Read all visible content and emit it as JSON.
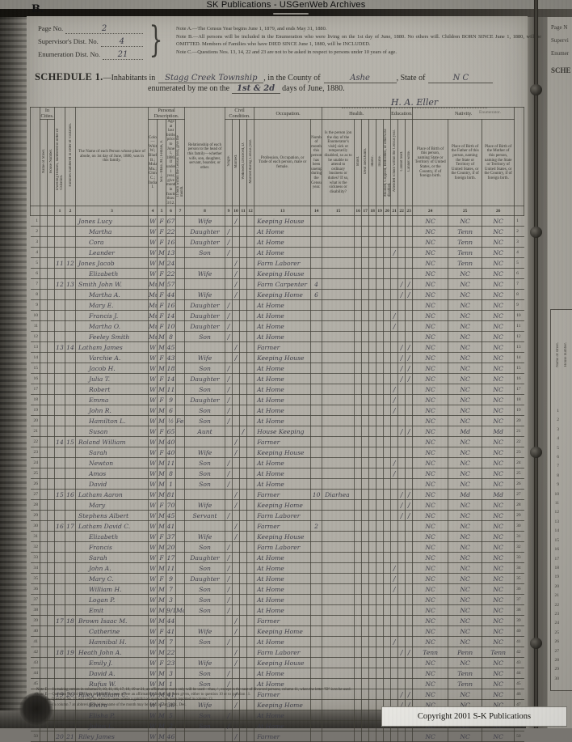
{
  "banner": {
    "text": "SK Publications - USGenWeb Archives"
  },
  "page_mark": "B.",
  "header": {
    "page_no_label": "Page No.",
    "page_no": "2",
    "sup_label": "Supervisor's Dist. No.",
    "sup": "4",
    "enum_label": "Enumeration Dist. No.",
    "enum_no": "21",
    "note_a": "Note A.—The Census Year begins June 1, 1879, and ends May 31, 1880.",
    "note_b": "Note B.—All persons will be included in the Enumeration who were living on the 1st day of June, 1880. No others will.  Children BORN SINCE June 1, 1880, will be OMITTED.  Members of Families who have DIED SINCE June 1, 1880, will be INCLUDED.",
    "note_c": "Note C.—Questions Nos. 13, 14, 22 and 23 are not to be asked in respect to persons under 10 years of age."
  },
  "schedule": {
    "title": "SCHEDULE 1.",
    "line1_pre": "—Inhabitants in",
    "township": "Stagg Creek Township",
    "county_label": ", in the County of",
    "county": "Ashe",
    "state_label": ", State of",
    "state": "N C",
    "line2_pre": "enumerated by me on the",
    "days": "1st & 2d",
    "line2_post": "days of June, 1880.",
    "signature": "H. A. Eller",
    "enumerator_label": "Enumerator."
  },
  "table": {
    "groups": {
      "in_cities": "In Cities.",
      "personal": "Personal Description.",
      "civil": "Civil Condition.",
      "occupation": "Occupation.",
      "health": "Health.",
      "education": "Education.",
      "nativity": "Nativity."
    },
    "labels": {
      "street": "Name of Street.",
      "house": "House Number.",
      "c1": "Dwelling Houses, numbered in order of visitation.",
      "c2": "Families numbered in order of visitation.",
      "c3": "The Name of each Person whose place of abode, on 1st day of June, 1880, was in this family.",
      "c4": "Color—White, W.; Black, B.; Mulatto, Mu.; Chinese, C.; Indian, I.",
      "c5": "Sex—Male, M.; Female, F.",
      "c6": "Age at last birthday prior to June 1, 1880. If under 1 year, give months in fractions, thus: 3/12.",
      "c7": "If born within the Census year, give the month.",
      "c8": "Relationship of each person to the head of this family—whether wife, son, daughter, servant, boarder, or other.",
      "c9": "Single.",
      "c10": "Married.",
      "c11": "Widowed, Divorced, D.",
      "c12": "Married during Census year.",
      "c13": "Profession, Occupation, or Trade of each person, male or female.",
      "c14": "Number of months this person has been unemployed during the Census year.",
      "c15": "Is the person [on the day of the Enumerator's visit] sick or temporarily disabled, so as to be unable to attend to ordinary business or duties? If so, what is the sickness or disability?",
      "c16": "Blind.",
      "c17": "Deaf and Dumb.",
      "c18": "Idiotic.",
      "c19": "Insane.",
      "c20": "Maimed, Crippled, Bedridden, or otherwise disabled.",
      "c21": "Attended school within the Census year.",
      "c22": "Cannot read.",
      "c23": "Cannot write.",
      "c24": "Place of Birth of this person, naming State or Territory of United States, or the Country, if of foreign birth.",
      "c25": "Place of Birth of the Father of this person, naming the State or Territory of United States, or the Country, if of foreign birth.",
      "c26": "Place of Birth of the Mother of this person, naming the State or Territory of United States, or the Country, if of foreign birth."
    },
    "col_numbers": [
      "1",
      "2",
      "3",
      "4",
      "5",
      "6",
      "7",
      "8",
      "9",
      "10",
      "11",
      "12",
      "13",
      "14",
      "15",
      "16",
      "17",
      "18",
      "19",
      "20",
      "21",
      "22",
      "23",
      "24",
      "25",
      "26"
    ],
    "rows": [
      {
        "ln": "1",
        "name": "Jones Lucy",
        "c": "W",
        "x": "F",
        "a": "67",
        "rel": "Wife",
        "cm": "/",
        "occ": "Keeping House",
        "bp": "NC",
        "fb": "NC",
        "mb": "NC"
      },
      {
        "ln": "2",
        "name": "Martha",
        "ind": 1,
        "c": "W",
        "x": "F",
        "a": "22",
        "rel": "Daughter",
        "cs": "/",
        "occ": "At Home",
        "bp": "NC",
        "fb": "Tenn",
        "mb": "NC"
      },
      {
        "ln": "3",
        "name": "Cora",
        "ind": 1,
        "c": "W",
        "x": "F",
        "a": "16",
        "rel": "Daughter",
        "cs": "/",
        "occ": "At Home",
        "bp": "NC",
        "fb": "Tenn",
        "mb": "NC"
      },
      {
        "ln": "4",
        "name": "Leander",
        "ind": 1,
        "c": "W",
        "x": "M",
        "a": "13",
        "rel": "Son",
        "cs": "/",
        "occ": "At Home",
        "es": "/",
        "bp": "NC",
        "fb": "Tenn",
        "mb": "NC"
      },
      {
        "ln": "5",
        "dw": "11",
        "fm": "12",
        "name": "Jones Jacob",
        "c": "W",
        "x": "M",
        "a": "24",
        "cm": "/",
        "occ": "Farm Laborer",
        "bp": "NC",
        "fb": "Tenn",
        "mb": "NC"
      },
      {
        "ln": "6",
        "name": "Elizabeth",
        "ind": 1,
        "c": "W",
        "x": "F",
        "a": "22",
        "rel": "Wife",
        "cm": "/",
        "occ": "Keeping House",
        "bp": "NC",
        "fb": "NC",
        "mb": "NC"
      },
      {
        "ln": "7",
        "dw": "12",
        "fm": "13",
        "name": "Smith John W.",
        "c": "Mu",
        "x": "M",
        "a": "57",
        "cm": "/",
        "occ": "Farm Carpenter",
        "un": "4",
        "er": "/",
        "ew": "/",
        "bp": "NC",
        "fb": "NC",
        "mb": "NC"
      },
      {
        "ln": "8",
        "name": "Martha A.",
        "ind": 1,
        "c": "Mu",
        "x": "F",
        "a": "44",
        "rel": "Wife",
        "cm": "/",
        "occ": "Keeping Home",
        "un": "6",
        "er": "/",
        "ew": "/",
        "bp": "NC",
        "fb": "NC",
        "mb": "NC"
      },
      {
        "ln": "9",
        "name": "Mary E.",
        "ind": 1,
        "c": "Mu",
        "x": "F",
        "a": "16",
        "rel": "Daughter",
        "cs": "/",
        "occ": "At Home",
        "bp": "NC",
        "fb": "NC",
        "mb": "NC"
      },
      {
        "ln": "10",
        "name": "Francis J.",
        "ind": 1,
        "c": "Mu",
        "x": "F",
        "a": "14",
        "rel": "Daughter",
        "cs": "/",
        "occ": "At Home",
        "es": "/",
        "bp": "NC",
        "fb": "NC",
        "mb": "NC"
      },
      {
        "ln": "11",
        "name": "Martha O.",
        "ind": 1,
        "c": "Mu",
        "x": "F",
        "a": "10",
        "rel": "Daughter",
        "cs": "/",
        "occ": "At Home",
        "es": "/",
        "bp": "NC",
        "fb": "NC",
        "mb": "NC"
      },
      {
        "ln": "12",
        "name": "Feeley Smith",
        "ind": 1,
        "c": "Mu",
        "x": "M",
        "a": "8",
        "rel": "Son",
        "cs": "/",
        "occ": "At Home",
        "bp": "NC",
        "fb": "NC",
        "mb": "NC"
      },
      {
        "ln": "13",
        "dw": "13",
        "fm": "14",
        "name": "Latham James",
        "c": "W",
        "x": "M",
        "a": "45",
        "cm": "/",
        "occ": "Farmer",
        "er": "/",
        "ew": "/",
        "bp": "NC",
        "fb": "NC",
        "mb": "NC"
      },
      {
        "ln": "14",
        "name": "Varchie A.",
        "ind": 1,
        "c": "W",
        "x": "F",
        "a": "43",
        "rel": "Wife",
        "cm": "/",
        "occ": "Keeping House",
        "er": "/",
        "ew": "/",
        "bp": "NC",
        "fb": "NC",
        "mb": "NC"
      },
      {
        "ln": "15",
        "name": "Jacob H.",
        "ind": 1,
        "c": "W",
        "x": "M",
        "a": "18",
        "rel": "Son",
        "cs": "/",
        "occ": "At Home",
        "er": "/",
        "ew": "/",
        "bp": "NC",
        "fb": "NC",
        "mb": "NC"
      },
      {
        "ln": "16",
        "name": "Julia T.",
        "ind": 1,
        "c": "W",
        "x": "F",
        "a": "14",
        "rel": "Daughter",
        "cs": "/",
        "occ": "At Home",
        "er": "/",
        "ew": "/",
        "bp": "NC",
        "fb": "NC",
        "mb": "NC"
      },
      {
        "ln": "17",
        "name": "Robert",
        "ind": 1,
        "c": "W",
        "x": "M",
        "a": "11",
        "rel": "Son",
        "cs": "/",
        "occ": "At Home",
        "es": "/",
        "bp": "NC",
        "fb": "NC",
        "mb": "NC"
      },
      {
        "ln": "18",
        "name": "Emma",
        "ind": 1,
        "c": "W",
        "x": "F",
        "a": "9",
        "rel": "Daughter",
        "cs": "/",
        "occ": "At Home",
        "es": "/",
        "bp": "NC",
        "fb": "NC",
        "mb": "NC"
      },
      {
        "ln": "19",
        "name": "John R.",
        "ind": 1,
        "c": "W",
        "x": "M",
        "a": "6",
        "rel": "Son",
        "cs": "/",
        "occ": "At Home",
        "es": "/",
        "bp": "NC",
        "fb": "NC",
        "mb": "NC"
      },
      {
        "ln": "20",
        "name": "Hamilton L.",
        "ind": 1,
        "c": "W",
        "x": "M",
        "a": "½",
        "mo": "Feb",
        "rel": "Son",
        "cs": "/",
        "occ": "At Home",
        "bp": "NC",
        "fb": "NC",
        "mb": "NC"
      },
      {
        "ln": "21",
        "name": "Susan",
        "ind": 1,
        "c": "W",
        "x": "F",
        "a": "65",
        "rel": "Aunt",
        "cw": "/",
        "occ": "House Keeping",
        "er": "/",
        "ew": "/",
        "bp": "NC",
        "fb": "Md",
        "mb": "Md"
      },
      {
        "ln": "22",
        "dw": "14",
        "fm": "15",
        "name": "Roland William",
        "c": "W",
        "x": "M",
        "a": "40",
        "cm": "/",
        "occ": "Farmer",
        "bp": "NC",
        "fb": "NC",
        "mb": "NC"
      },
      {
        "ln": "23",
        "name": "Sarah",
        "ind": 1,
        "c": "W",
        "x": "F",
        "a": "40",
        "rel": "Wife",
        "cm": "/",
        "occ": "Keeping House",
        "bp": "NC",
        "fb": "NC",
        "mb": "NC"
      },
      {
        "ln": "24",
        "name": "Newton",
        "ind": 1,
        "c": "W",
        "x": "M",
        "a": "11",
        "rel": "Son",
        "cs": "/",
        "occ": "At Home",
        "es": "/",
        "bp": "NC",
        "fb": "NC",
        "mb": "NC"
      },
      {
        "ln": "25",
        "name": "Amos",
        "ind": 1,
        "c": "W",
        "x": "M",
        "a": "8",
        "rel": "Son",
        "cs": "/",
        "occ": "At Home",
        "es": "/",
        "bp": "NC",
        "fb": "NC",
        "mb": "NC"
      },
      {
        "ln": "26",
        "name": "David",
        "ind": 1,
        "c": "W",
        "x": "M",
        "a": "1",
        "rel": "Son",
        "cs": "/",
        "occ": "At Home",
        "bp": "NC",
        "fb": "NC",
        "mb": "NC"
      },
      {
        "ln": "27",
        "dw": "15",
        "fm": "16",
        "name": "Latham Aaron",
        "c": "W",
        "x": "M",
        "a": "81",
        "cm": "/",
        "occ": "Farmer",
        "un": "10",
        "sick": "Diarhea",
        "er": "/",
        "ew": "/",
        "bp": "NC",
        "fb": "Md",
        "mb": "Md"
      },
      {
        "ln": "28",
        "name": "Mary",
        "ind": 1,
        "c": "W",
        "x": "F",
        "a": "70",
        "rel": "Wife",
        "cm": "/",
        "occ": "Keeping Home",
        "er": "/",
        "ew": "/",
        "bp": "NC",
        "fb": "NC",
        "mb": "NC"
      },
      {
        "ln": "29",
        "name": "Stephens Albert",
        "c": "W",
        "x": "M",
        "a": "45",
        "rel": "Servant",
        "cs": "/",
        "occ": "Farm Laborer",
        "er": "/",
        "ew": "/",
        "bp": "NC",
        "fb": "NC",
        "mb": "NC"
      },
      {
        "ln": "30",
        "dw": "16",
        "fm": "17",
        "name": "Latham David C.",
        "c": "W",
        "x": "M",
        "a": "41",
        "cm": "/",
        "occ": "Farmer",
        "un": "2",
        "bp": "NC",
        "fb": "NC",
        "mb": "NC"
      },
      {
        "ln": "31",
        "name": "Elizabeth",
        "ind": 1,
        "c": "W",
        "x": "F",
        "a": "37",
        "rel": "Wife",
        "cm": "/",
        "occ": "Keeping House",
        "bp": "NC",
        "fb": "NC",
        "mb": "NC"
      },
      {
        "ln": "32",
        "name": "Francis",
        "ind": 1,
        "c": "W",
        "x": "M",
        "a": "20",
        "rel": "Son",
        "cs": "/",
        "occ": "Farm Laborer",
        "bp": "NC",
        "fb": "NC",
        "mb": "NC"
      },
      {
        "ln": "33",
        "name": "Sarah",
        "ind": 1,
        "c": "W",
        "x": "F",
        "a": "17",
        "rel": "Daughter",
        "cs": "/",
        "occ": "At Home",
        "bp": "NC",
        "fb": "NC",
        "mb": "NC"
      },
      {
        "ln": "34",
        "name": "John A.",
        "ind": 1,
        "c": "W",
        "x": "M",
        "a": "11",
        "rel": "Son",
        "cs": "/",
        "occ": "At Home",
        "es": "/",
        "bp": "NC",
        "fb": "NC",
        "mb": "NC"
      },
      {
        "ln": "35",
        "name": "Mary C.",
        "ind": 1,
        "c": "W",
        "x": "F",
        "a": "9",
        "rel": "Daughter",
        "cs": "/",
        "occ": "At Home",
        "es": "/",
        "bp": "NC",
        "fb": "NC",
        "mb": "NC"
      },
      {
        "ln": "36",
        "name": "William H.",
        "ind": 1,
        "c": "W",
        "x": "M",
        "a": "7",
        "rel": "Son",
        "cs": "/",
        "occ": "At Home",
        "es": "/",
        "bp": "NC",
        "fb": "NC",
        "mb": "NC"
      },
      {
        "ln": "37",
        "name": "Logan P.",
        "ind": 1,
        "c": "W",
        "x": "M",
        "a": "3",
        "rel": "Son",
        "cs": "/",
        "occ": "At Home",
        "bp": "NC",
        "fb": "NC",
        "mb": "NC"
      },
      {
        "ln": "38",
        "name": "Emit",
        "ind": 1,
        "c": "W",
        "x": "M",
        "a": "9/12",
        "mo": "May",
        "rel": "Son",
        "cs": "/",
        "occ": "At Home",
        "bp": "NC",
        "fb": "NC",
        "mb": "NC"
      },
      {
        "ln": "39",
        "dw": "17",
        "fm": "18",
        "name": "Brown Isaac M.",
        "c": "W",
        "x": "M",
        "a": "44",
        "cm": "/",
        "occ": "Farmer",
        "bp": "NC",
        "fb": "NC",
        "mb": "NC"
      },
      {
        "ln": "40",
        "name": "Catherine",
        "ind": 1,
        "c": "W",
        "x": "F",
        "a": "41",
        "rel": "Wife",
        "cm": "/",
        "occ": "Keeping Home",
        "bp": "NC",
        "fb": "NC",
        "mb": "NC"
      },
      {
        "ln": "41",
        "name": "Hannibal H.",
        "ind": 1,
        "c": "W",
        "x": "M",
        "a": "7",
        "rel": "Son",
        "cs": "/",
        "occ": "At Home",
        "es": "/",
        "bp": "NC",
        "fb": "NC",
        "mb": "NC"
      },
      {
        "ln": "42",
        "dw": "18",
        "fm": "19",
        "name": "Heath John A.",
        "c": "W",
        "x": "M",
        "a": "22",
        "cm": "/",
        "occ": "Farm Laborer",
        "er": "/",
        "ew": "/",
        "bp": "Tenn",
        "fb": "Penn",
        "mb": "Tenn"
      },
      {
        "ln": "43",
        "name": "Emily J.",
        "ind": 1,
        "c": "W",
        "x": "F",
        "a": "23",
        "rel": "Wife",
        "cm": "/",
        "occ": "Keeping House",
        "bp": "NC",
        "fb": "NC",
        "mb": "NC"
      },
      {
        "ln": "44",
        "name": "David A.",
        "ind": 1,
        "c": "W",
        "x": "M",
        "a": "3",
        "rel": "Son",
        "cs": "/",
        "occ": "At Home",
        "bp": "NC",
        "fb": "Tenn",
        "mb": "NC"
      },
      {
        "ln": "45",
        "name": "Rufus W.",
        "ind": 1,
        "c": "W",
        "x": "M",
        "a": "1",
        "rel": "Son",
        "cs": "/",
        "occ": "At Home",
        "bp": "NC",
        "fb": "Tenn",
        "mb": "NC"
      },
      {
        "ln": "46",
        "dw": "19",
        "fm": "20",
        "name": "Riley William C.",
        "c": "W",
        "x": "M",
        "a": "41",
        "cm": "/",
        "occ": "Farmer",
        "er": "/",
        "ew": "/",
        "bp": "NC",
        "fb": "NC",
        "mb": "NC"
      },
      {
        "ln": "47",
        "name": "Elvira",
        "ind": 1,
        "c": "W",
        "x": "F",
        "a": "36",
        "rel": "Wife",
        "cm": "/",
        "occ": "Keeping Home",
        "er": "/",
        "ew": "/",
        "bp": "NC",
        "fb": "NC",
        "mb": "NC"
      },
      {
        "ln": "48",
        "name": "Elisha P.",
        "ind": 1,
        "c": "W",
        "x": "M",
        "a": "5",
        "rel": "Son",
        "cs": "/",
        "occ": "At Home",
        "bp": "NC",
        "fb": "NC",
        "mb": "NC"
      },
      {
        "ln": "49",
        "name": "Julius L.",
        "ind": 1,
        "c": "W",
        "x": "M",
        "a": "2",
        "rel": "Son",
        "cs": "/",
        "occ": "At Home",
        "bp": "NC",
        "fb": "NC",
        "mb": "NC"
      },
      {
        "ln": "50",
        "dw": "20",
        "fm": "21",
        "name": "Riley James",
        "c": "W",
        "x": "M",
        "a": "46",
        "cm": "/",
        "occ": "Farmer",
        "bp": "NC",
        "fb": "NC",
        "mb": "NC"
      }
    ]
  },
  "footer": {
    "note_d": "Note D.—In making entries in columns 9, 10, 11, 16, 17, 18, 19 or 21, an affirmative mark only will be used—thus, / , except in the case of divorced persons, column 11, when the letter \"D\" is to be used.",
    "note_e": "Note E.—Question No. 14 will only be asked in cases where an affirmative answer has been given, either to question 10 or to question 11.",
    "note_f": "Note F.—Question No. 15 will only be asked in cases where a gainful occupation has been reported in column 13.",
    "note_g": "Note G.—In column 7 an abbreviation in the name of the month may be used, as Jan., Apr., Dec."
  },
  "copyright": "Copyright 2001 S-K Publications",
  "side_page": {
    "t1": "Page N",
    "t2": "Supervi",
    "t3": "Enumer",
    "t4": "SCHE",
    "v1": "Name of street.",
    "v2": "House number."
  }
}
